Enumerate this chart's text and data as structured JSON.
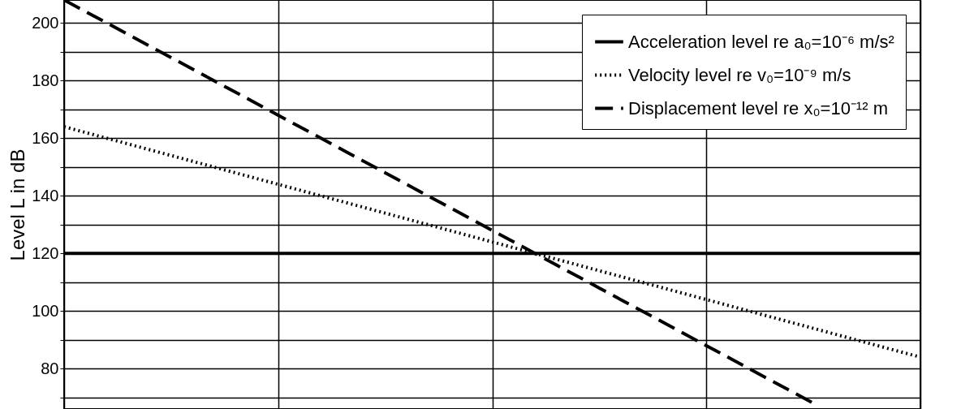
{
  "chart_data": {
    "type": "line",
    "ylabel": "Level L in dB",
    "categories": [
      null,
      null,
      null,
      null,
      null,
      null,
      null,
      null,
      null
    ],
    "series": [
      {
        "name": "Acceleration level re a₀=10⁻⁶ m/s²",
        "color": "#000000",
        "line_style": "solid",
        "values": [
          120,
          120,
          120,
          120,
          120,
          120,
          120,
          120,
          120
        ]
      },
      {
        "name": "Velocity level re v₀=10⁻⁹ m/s",
        "color": "#000000",
        "line_style": "dotted",
        "values": [
          164,
          154,
          144,
          134,
          124,
          114,
          104,
          94,
          84
        ]
      },
      {
        "name": "Displacement level re x₀=10⁻¹² m",
        "color": "#000000",
        "line_style": "dashed",
        "values": [
          208,
          188,
          168,
          148,
          128,
          108,
          88,
          68,
          null
        ]
      }
    ],
    "ylim": [
      66,
      208
    ],
    "yticks": [
      {
        "value": 70,
        "label": null
      },
      80,
      {
        "value": 90,
        "label": null
      },
      100,
      {
        "value": 110,
        "label": null
      },
      120,
      {
        "value": 130,
        "label": null
      },
      140,
      {
        "value": 150,
        "label": null
      },
      160,
      {
        "value": 170,
        "label": null
      },
      180,
      {
        "value": 190,
        "label": null
      },
      200
    ],
    "grid": true,
    "legend": "top right",
    "tick_labels": "y",
    "marker": "none"
  }
}
